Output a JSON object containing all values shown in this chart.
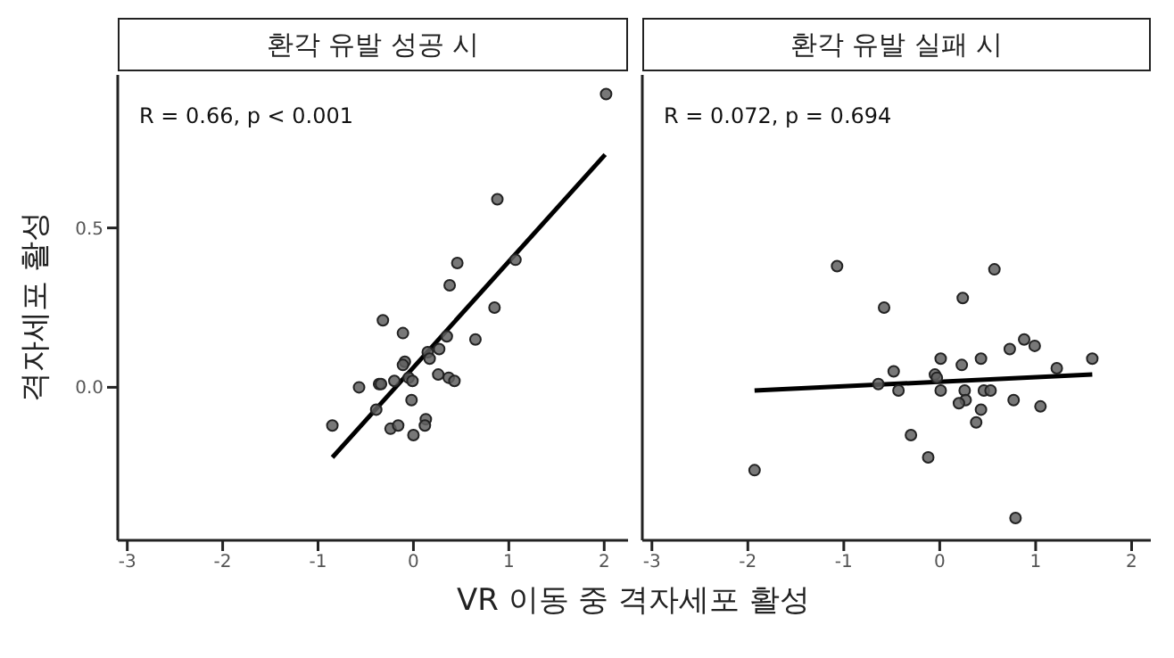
{
  "chart_data": [
    {
      "type": "scatter",
      "title": "환각 유발 성공 시",
      "xlabel": "VR 이동 중 격자세포 활성",
      "ylabel": "격자세포 활성",
      "annotations": [
        "R = 0.66, p < 0.001"
      ],
      "xlim": [
        -3.1,
        2.25
      ],
      "xticks": [
        -3,
        -2,
        -1,
        0,
        1,
        2
      ],
      "ylim": [
        -0.48,
        0.98
      ],
      "yticks": [
        {
          "value": 0,
          "label": "0.0"
        },
        {
          "value": 0.5,
          "label": "0.5"
        }
      ],
      "grid": false,
      "marker": "circle",
      "series": [
        {
          "color": "#606060",
          "x": [
            2.02,
            0.88,
            0.46,
            1.07,
            0.38,
            0.85,
            -0.32,
            -0.11,
            0.35,
            0.65,
            0.15,
            0.27,
            -0.09,
            -0.11,
            0.17,
            0.26,
            -0.05,
            -0.2,
            0.37,
            0.43,
            -0.36,
            -0.34,
            -0.57,
            -0.01,
            -0.02,
            -0.39,
            -0.85,
            0.13,
            0.12,
            -0.24,
            -0.16,
            0
          ],
          "values": [
            0.92,
            0.59,
            0.39,
            0.4,
            0.32,
            0.25,
            0.21,
            0.17,
            0.16,
            0.15,
            0.11,
            0.12,
            0.08,
            0.07,
            0.09,
            0.04,
            0.03,
            0.02,
            0.03,
            0.02,
            0.01,
            0.01,
            0,
            0.02,
            -0.04,
            -0.07,
            -0.12,
            -0.1,
            -0.12,
            -0.13,
            -0.12,
            -0.15
          ]
        },
        {
          "type": "line",
          "marker": "none",
          "color": "#000000",
          "x": [
            -0.85,
            2.01
          ],
          "values": [
            -0.22,
            0.73
          ]
        }
      ]
    },
    {
      "type": "scatter",
      "title": "환각 유발 실패 시",
      "annotations": [
        "R = 0.072, p = 0.694"
      ],
      "tick_labels": "x",
      "xlim": [
        -3.1,
        2.2
      ],
      "xticks": [
        -3,
        -2,
        -1,
        0,
        1,
        2
      ],
      "ylim": [
        -0.48,
        0.98
      ],
      "grid": false,
      "marker": "circle",
      "series": [
        {
          "color": "#606060",
          "x": [
            -1.07,
            0.57,
            0.24,
            -0.58,
            0.88,
            0.99,
            0.73,
            1.59,
            0.01,
            0.43,
            0.23,
            -0.48,
            1.22,
            -0.05,
            -0.03,
            -0.64,
            -0.43,
            0.01,
            0.26,
            0.46,
            0.53,
            0.27,
            0.2,
            0.77,
            0.43,
            1.05,
            0.38,
            -0.3,
            -0.12,
            -1.93,
            0.79
          ],
          "values": [
            0.38,
            0.37,
            0.28,
            0.25,
            0.15,
            0.13,
            0.12,
            0.09,
            0.09,
            0.09,
            0.07,
            0.05,
            0.06,
            0.04,
            0.03,
            0.01,
            -0.01,
            -0.01,
            -0.01,
            -0.01,
            -0.01,
            -0.04,
            -0.05,
            -0.04,
            -0.07,
            -0.06,
            -0.11,
            -0.15,
            -0.22,
            -0.26,
            -0.41
          ]
        },
        {
          "type": "line",
          "marker": "none",
          "color": "#000000",
          "x": [
            -1.93,
            1.59
          ],
          "values": [
            -0.01,
            0.04
          ]
        }
      ]
    }
  ]
}
